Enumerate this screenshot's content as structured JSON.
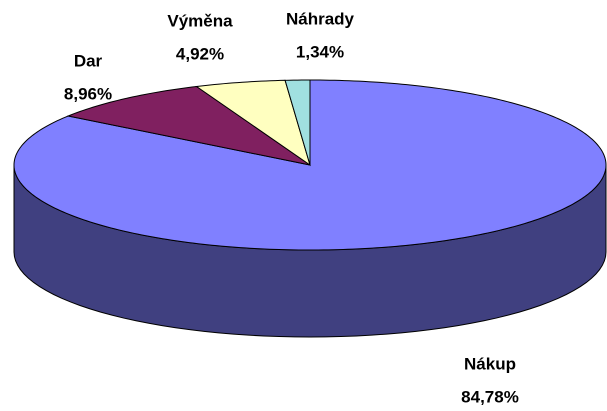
{
  "chart_data": {
    "type": "pie",
    "categories": [
      "Nákup",
      "Dar",
      "Výměna",
      "Náhrady"
    ],
    "values": [
      84.78,
      8.96,
      4.92,
      1.34
    ],
    "value_labels": [
      "84,78%",
      "8,96%",
      "4,92%",
      "1,34%"
    ],
    "colors": [
      "#8080ff",
      "#802060",
      "#ffffc0",
      "#a0e0e0"
    ]
  }
}
